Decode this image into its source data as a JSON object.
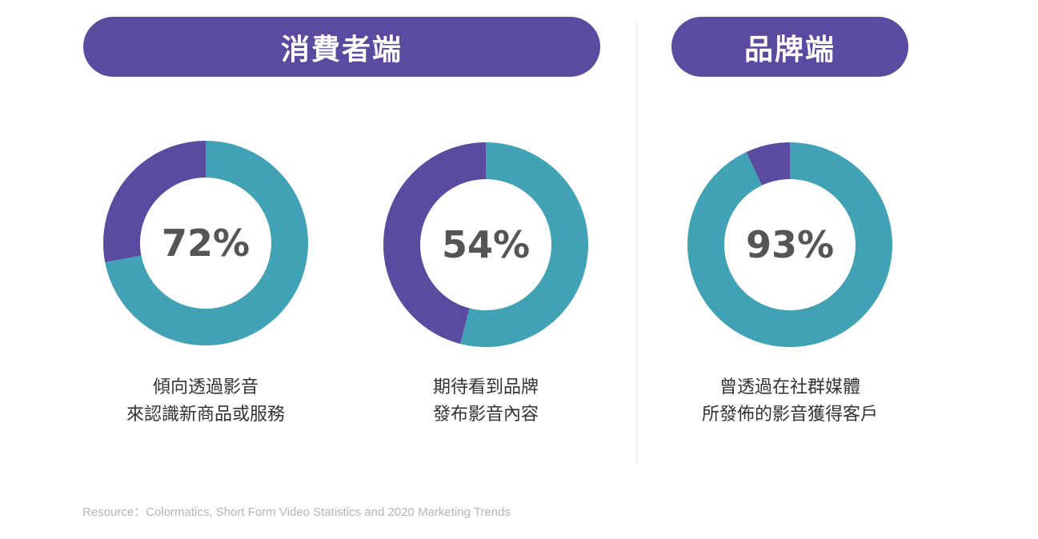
{
  "headers": {
    "consumer": "消費者端",
    "brand": "品牌端"
  },
  "colors": {
    "primary": "#41a2b6",
    "secondary": "#5a4aa0",
    "label": "#555555"
  },
  "chart_data": [
    {
      "type": "pie",
      "group": "消費者端",
      "values": [
        72,
        28
      ],
      "label": "72%",
      "caption": [
        "傾向透過影音",
        "來認識新商品或服務"
      ]
    },
    {
      "type": "pie",
      "group": "消費者端",
      "values": [
        54,
        46
      ],
      "label": "54%",
      "caption": [
        "期待看到品牌",
        "發布影音內容"
      ]
    },
    {
      "type": "pie",
      "group": "品牌端",
      "values": [
        93,
        7
      ],
      "label": "93%",
      "caption": [
        "曾透過在社群媒體",
        "所發佈的影音獲得客戶"
      ]
    }
  ],
  "source": "Resource：Colormatics, Short Form Video Statistics and 2020 Marketing Trends"
}
